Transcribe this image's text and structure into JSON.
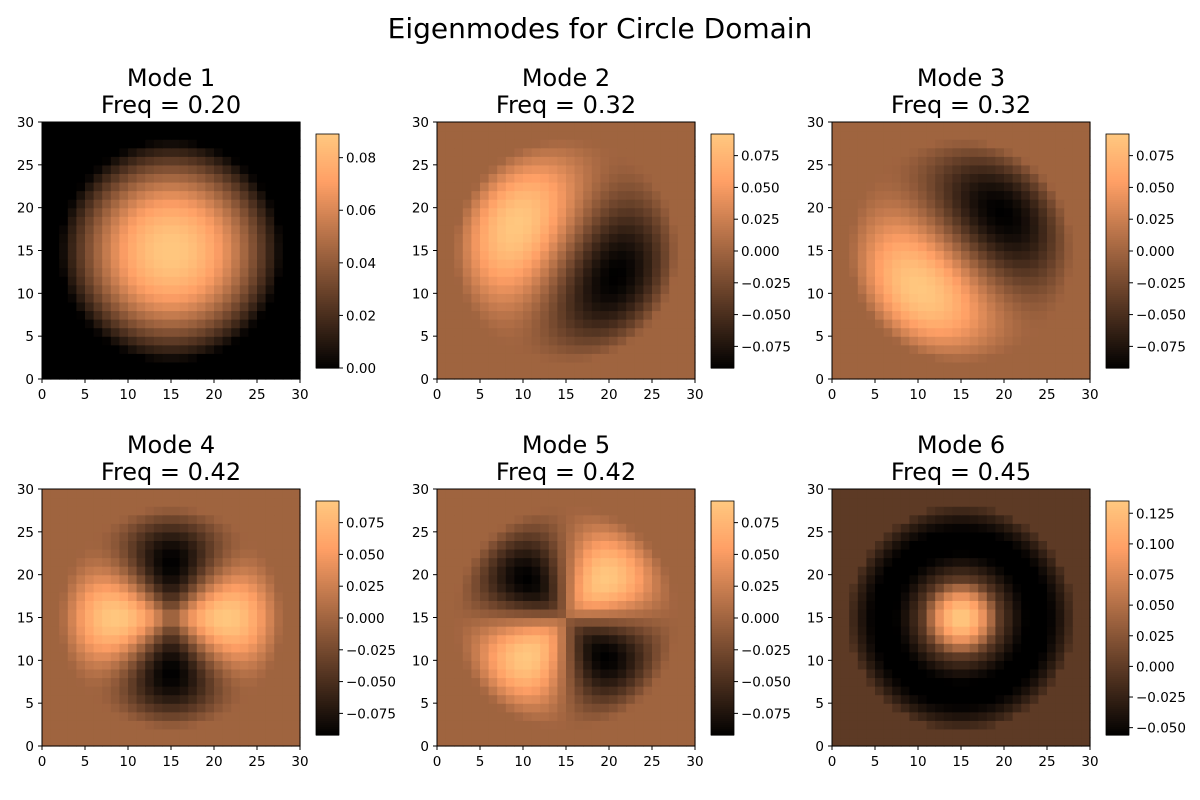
{
  "figure": {
    "title": "Eigenmodes for Circle Domain",
    "colormap": "copper",
    "colormap_colors": [
      "#000000",
      "#ffc77f"
    ],
    "background": "#ffffff"
  },
  "chart_data": [
    {
      "type": "heatmap",
      "mode": 1,
      "title_line1": "Mode 1",
      "title_line2": "Freq = 0.20",
      "freq": 0.2,
      "pattern": "radial-fundamental",
      "grid_size": 30,
      "circle_radius": 13,
      "x_ticks": [
        "0",
        "5",
        "10",
        "15",
        "20",
        "25",
        "30"
      ],
      "y_ticks": [
        "0",
        "5",
        "10",
        "15",
        "20",
        "25",
        "30"
      ],
      "xlim": [
        0,
        30
      ],
      "ylim": [
        0,
        30
      ],
      "vmin": 0.0,
      "vmax": 0.089,
      "colorbar_ticks": [
        0.0,
        0.02,
        0.04,
        0.06,
        0.08
      ],
      "colorbar_labels": [
        "0.00",
        "0.02",
        "0.04",
        "0.06",
        "0.08"
      ]
    },
    {
      "type": "heatmap",
      "mode": 2,
      "title_line1": "Mode 2",
      "title_line2": "Freq = 0.32",
      "freq": 0.32,
      "pattern": "dipole",
      "angle_deg": 153,
      "grid_size": 30,
      "circle_radius": 13,
      "x_ticks": [
        "0",
        "5",
        "10",
        "15",
        "20",
        "25",
        "30"
      ],
      "y_ticks": [
        "0",
        "5",
        "10",
        "15",
        "20",
        "25",
        "30"
      ],
      "xlim": [
        0,
        30
      ],
      "ylim": [
        0,
        30
      ],
      "vmin": -0.092,
      "vmax": 0.092,
      "colorbar_ticks": [
        -0.075,
        -0.05,
        -0.025,
        0.0,
        0.025,
        0.05,
        0.075
      ],
      "colorbar_labels": [
        "−0.075",
        "−0.050",
        "−0.025",
        "0.000",
        "0.025",
        "0.050",
        "0.075"
      ]
    },
    {
      "type": "heatmap",
      "mode": 3,
      "title_line1": "Mode 3",
      "title_line2": "Freq = 0.32",
      "freq": 0.32,
      "pattern": "dipole",
      "angle_deg": 223,
      "grid_size": 30,
      "circle_radius": 13,
      "x_ticks": [
        "0",
        "5",
        "10",
        "15",
        "20",
        "25",
        "30"
      ],
      "y_ticks": [
        "0",
        "5",
        "10",
        "15",
        "20",
        "25",
        "30"
      ],
      "xlim": [
        0,
        30
      ],
      "ylim": [
        0,
        30
      ],
      "vmin": -0.092,
      "vmax": 0.092,
      "colorbar_ticks": [
        -0.075,
        -0.05,
        -0.025,
        0.0,
        0.025,
        0.05,
        0.075
      ],
      "colorbar_labels": [
        "−0.075",
        "−0.050",
        "−0.025",
        "0.000",
        "0.025",
        "0.050",
        "0.075"
      ]
    },
    {
      "type": "heatmap",
      "mode": 4,
      "title_line1": "Mode 4",
      "title_line2": "Freq = 0.42",
      "freq": 0.42,
      "pattern": "quadrupole-cos2",
      "grid_size": 30,
      "circle_radius": 13,
      "x_ticks": [
        "0",
        "5",
        "10",
        "15",
        "20",
        "25",
        "30"
      ],
      "y_ticks": [
        "0",
        "5",
        "10",
        "15",
        "20",
        "25",
        "30"
      ],
      "xlim": [
        0,
        30
      ],
      "ylim": [
        0,
        30
      ],
      "vmin": -0.092,
      "vmax": 0.092,
      "colorbar_ticks": [
        -0.075,
        -0.05,
        -0.025,
        0.0,
        0.025,
        0.05,
        0.075
      ],
      "colorbar_labels": [
        "−0.075",
        "−0.050",
        "−0.025",
        "0.000",
        "0.025",
        "0.050",
        "0.075"
      ]
    },
    {
      "type": "heatmap",
      "mode": 5,
      "title_line1": "Mode 5",
      "title_line2": "Freq = 0.42",
      "freq": 0.42,
      "pattern": "quadrupole-sin2",
      "grid_size": 30,
      "circle_radius": 13,
      "x_ticks": [
        "0",
        "5",
        "10",
        "15",
        "20",
        "25",
        "30"
      ],
      "y_ticks": [
        "0",
        "5",
        "10",
        "15",
        "20",
        "25",
        "30"
      ],
      "xlim": [
        0,
        30
      ],
      "ylim": [
        0,
        30
      ],
      "vmin": -0.092,
      "vmax": 0.092,
      "colorbar_ticks": [
        -0.075,
        -0.05,
        -0.025,
        0.0,
        0.025,
        0.05,
        0.075
      ],
      "colorbar_labels": [
        "−0.075",
        "−0.050",
        "−0.025",
        "0.000",
        "0.025",
        "0.050",
        "0.075"
      ]
    },
    {
      "type": "heatmap",
      "mode": 6,
      "title_line1": "Mode 6",
      "title_line2": "Freq = 0.45",
      "freq": 0.45,
      "pattern": "radial-second",
      "grid_size": 30,
      "circle_radius": 13,
      "x_ticks": [
        "0",
        "5",
        "10",
        "15",
        "20",
        "25",
        "30"
      ],
      "y_ticks": [
        "0",
        "5",
        "10",
        "15",
        "20",
        "25",
        "30"
      ],
      "xlim": [
        0,
        30
      ],
      "ylim": [
        0,
        30
      ],
      "vmin": -0.056,
      "vmax": 0.135,
      "colorbar_ticks": [
        -0.05,
        -0.025,
        0.0,
        0.025,
        0.05,
        0.075,
        0.1,
        0.125
      ],
      "colorbar_labels": [
        "−0.050",
        "−0.025",
        "0.000",
        "0.025",
        "0.050",
        "0.075",
        "0.100",
        "0.125"
      ]
    }
  ]
}
